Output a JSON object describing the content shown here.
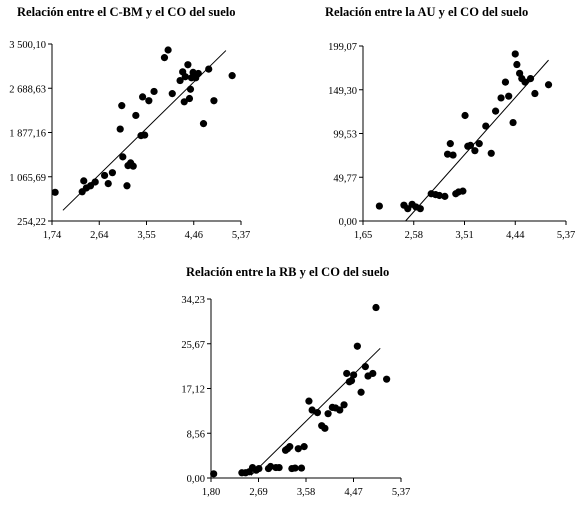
{
  "chart_data": [
    {
      "type": "scatter",
      "title": "Relación entre el C-BM y el CO del suelo",
      "xlabel": "",
      "ylabel": "",
      "x_ticks": [
        "1,74",
        "2,64",
        "3,55",
        "4,46",
        "5,37"
      ],
      "y_ticks": [
        "254,22",
        "1 065,69",
        "1 877,16",
        "2 688,63",
        "3 500,10"
      ],
      "xlim": [
        1.74,
        5.37
      ],
      "ylim": [
        254.22,
        3500.1
      ],
      "trend_line": {
        "x": [
          1.95,
          5.08
        ],
        "y": [
          450,
          3380
        ]
      },
      "points": [
        [
          1.8,
          780
        ],
        [
          2.32,
          790
        ],
        [
          2.35,
          990
        ],
        [
          2.4,
          860
        ],
        [
          2.48,
          900
        ],
        [
          2.57,
          970
        ],
        [
          2.75,
          1090
        ],
        [
          2.82,
          940
        ],
        [
          2.9,
          1140
        ],
        [
          3.05,
          1940
        ],
        [
          3.08,
          2370
        ],
        [
          3.1,
          1430
        ],
        [
          3.18,
          900
        ],
        [
          3.2,
          1270
        ],
        [
          3.25,
          1320
        ],
        [
          3.3,
          1260
        ],
        [
          3.35,
          2190
        ],
        [
          3.45,
          1820
        ],
        [
          3.48,
          2530
        ],
        [
          3.52,
          1830
        ],
        [
          3.6,
          2460
        ],
        [
          3.7,
          2630
        ],
        [
          3.9,
          3250
        ],
        [
          3.97,
          3390
        ],
        [
          4.05,
          2590
        ],
        [
          4.2,
          2830
        ],
        [
          4.25,
          2990
        ],
        [
          4.28,
          2440
        ],
        [
          4.3,
          2900
        ],
        [
          4.35,
          3120
        ],
        [
          4.38,
          2500
        ],
        [
          4.4,
          2670
        ],
        [
          4.42,
          2880
        ],
        [
          4.45,
          2980
        ],
        [
          4.5,
          2880
        ],
        [
          4.55,
          2960
        ],
        [
          4.65,
          2040
        ],
        [
          4.75,
          3040
        ],
        [
          4.85,
          2460
        ],
        [
          5.2,
          2920
        ]
      ]
    },
    {
      "type": "scatter",
      "title": "Relación entre la AU y el CO del suelo",
      "xlabel": "",
      "ylabel": "",
      "x_ticks": [
        "1,65",
        "2,58",
        "3,51",
        "4,44",
        "5,37"
      ],
      "y_ticks": [
        "0,00",
        "49,77",
        "99,53",
        "149,30",
        "199,07"
      ],
      "xlim": [
        1.65,
        5.37
      ],
      "ylim": [
        0.0,
        199.07
      ],
      "trend_line": {
        "x": [
          2.43,
          5.05
        ],
        "y": [
          0,
          183
        ]
      },
      "points": [
        [
          1.95,
          17
        ],
        [
          2.4,
          18
        ],
        [
          2.47,
          14
        ],
        [
          2.55,
          19
        ],
        [
          2.62,
          16
        ],
        [
          2.7,
          14
        ],
        [
          2.9,
          31
        ],
        [
          2.98,
          30
        ],
        [
          3.05,
          29
        ],
        [
          3.15,
          28
        ],
        [
          3.2,
          76
        ],
        [
          3.25,
          88
        ],
        [
          3.3,
          75
        ],
        [
          3.35,
          31
        ],
        [
          3.4,
          33
        ],
        [
          3.48,
          34
        ],
        [
          3.52,
          120
        ],
        [
          3.57,
          85
        ],
        [
          3.62,
          86
        ],
        [
          3.7,
          80
        ],
        [
          3.78,
          88
        ],
        [
          3.9,
          108
        ],
        [
          4.0,
          77
        ],
        [
          4.08,
          125
        ],
        [
          4.18,
          140
        ],
        [
          4.26,
          158
        ],
        [
          4.32,
          142
        ],
        [
          4.4,
          112
        ],
        [
          4.44,
          190
        ],
        [
          4.47,
          178
        ],
        [
          4.52,
          168
        ],
        [
          4.56,
          162
        ],
        [
          4.62,
          158
        ],
        [
          4.72,
          162
        ],
        [
          4.8,
          145
        ],
        [
          5.05,
          155
        ]
      ]
    },
    {
      "type": "scatter",
      "title": "Relación entre la RB y el CO del suelo",
      "xlabel": "",
      "ylabel": "",
      "x_ticks": [
        "1,80",
        "2,69",
        "3,58",
        "4,47",
        "5,37"
      ],
      "y_ticks": [
        "0,00",
        "8,56",
        "17,12",
        "25,67",
        "34,23"
      ],
      "xlim": [
        1.8,
        5.37
      ],
      "ylim": [
        0.0,
        34.23
      ],
      "trend_line": {
        "x": [
          2.55,
          4.98
        ],
        "y": [
          0.5,
          24.8
        ]
      },
      "points": [
        [
          1.85,
          0.8
        ],
        [
          2.38,
          1.0
        ],
        [
          2.45,
          1.0
        ],
        [
          2.52,
          1.2
        ],
        [
          2.58,
          2.0
        ],
        [
          2.65,
          1.5
        ],
        [
          2.7,
          1.8
        ],
        [
          2.88,
          1.8
        ],
        [
          2.92,
          2.2
        ],
        [
          3.02,
          2.0
        ],
        [
          3.08,
          2.0
        ],
        [
          3.2,
          5.3
        ],
        [
          3.24,
          5.6
        ],
        [
          3.28,
          6.0
        ],
        [
          3.32,
          1.8
        ],
        [
          3.38,
          1.9
        ],
        [
          3.44,
          5.6
        ],
        [
          3.5,
          1.9
        ],
        [
          3.55,
          6.0
        ],
        [
          3.64,
          14.7
        ],
        [
          3.7,
          13.0
        ],
        [
          3.8,
          12.5
        ],
        [
          3.88,
          10.0
        ],
        [
          3.94,
          9.5
        ],
        [
          4.0,
          12.3
        ],
        [
          4.08,
          13.5
        ],
        [
          4.14,
          13.4
        ],
        [
          4.22,
          13.0
        ],
        [
          4.3,
          14.0
        ],
        [
          4.35,
          20.0
        ],
        [
          4.4,
          18.4
        ],
        [
          4.44,
          18.6
        ],
        [
          4.48,
          19.7
        ],
        [
          4.55,
          25.2
        ],
        [
          4.62,
          16.4
        ],
        [
          4.7,
          21.3
        ],
        [
          4.75,
          19.5
        ],
        [
          4.84,
          20.0
        ],
        [
          4.9,
          32.6
        ],
        [
          5.1,
          18.9
        ]
      ]
    }
  ]
}
